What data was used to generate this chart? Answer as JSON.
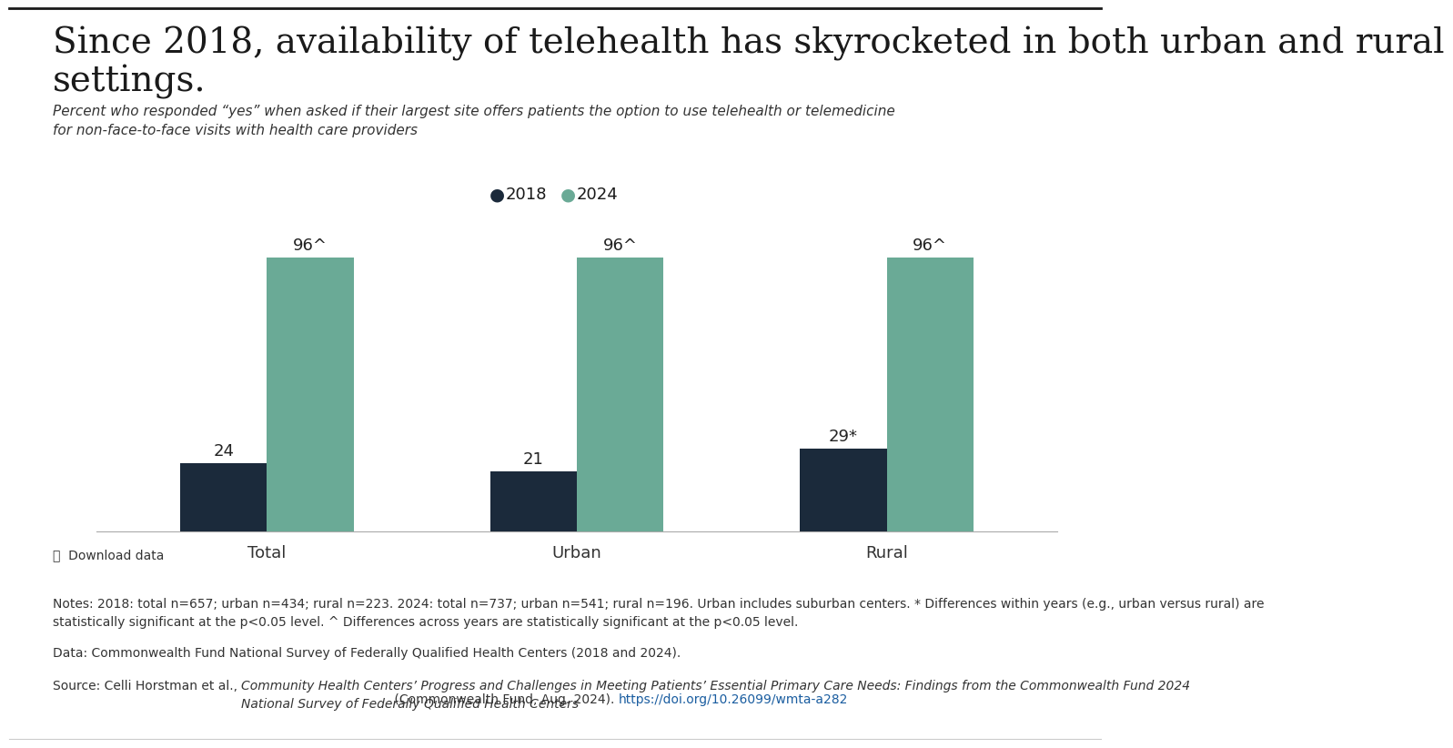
{
  "title_line1": "Since 2018, availability of telehealth has skyrocketed in both urban and rural",
  "title_line2": "settings.",
  "subtitle": "Percent who responded “yes” when asked if their largest site offers patients the option to use telehealth or telemedicine\nfor non-face-to-face visits with health care providers",
  "categories": [
    "Total",
    "Urban",
    "Rural"
  ],
  "values_2018": [
    24,
    21,
    29
  ],
  "values_2024": [
    96,
    96,
    96
  ],
  "labels_2018": [
    "24",
    "21",
    "29*"
  ],
  "labels_2024": [
    "96^",
    "96^",
    "96^"
  ],
  "color_2018": "#1b2a3b",
  "color_2024": "#6aaa96",
  "legend_labels": [
    "2018",
    "2024"
  ],
  "bar_width": 0.28,
  "ylim": [
    0,
    112
  ],
  "background_color": "#ffffff",
  "download_text": "⤓  Download data",
  "notes_text": "Notes: 2018: total n=657; urban n=434; rural n=223. 2024: total n=737; urban n=541; rural n=196. Urban includes suburban centers. * Differences within years (e.g., urban versus rural) are\nstatistically significant at the p<0.05 level. ^ Differences across years are statistically significant at the p<0.05 level.",
  "data_text": "Data: Commonwealth Fund National Survey of Federally Qualified Health Centers (2018 and 2024).",
  "source_text_plain": "Source: Celli Horstman et al., ",
  "source_text_italic": "Community Health Centers’ Progress and Challenges in Meeting Patients’ Essential Primary Care Needs: Findings from the Commonwealth Fund 2024\nNational Survey of Federally Qualified Health Centers",
  "source_text_plain2": " (Commonwealth Fund, Aug. 2024). ",
  "source_url": "https://doi.org/10.26099/wmta-a282",
  "title_fontsize": 28,
  "subtitle_fontsize": 11,
  "label_fontsize": 13,
  "tick_fontsize": 13,
  "legend_fontsize": 13,
  "notes_fontsize": 10,
  "top_border_color": "#1a1a1a"
}
